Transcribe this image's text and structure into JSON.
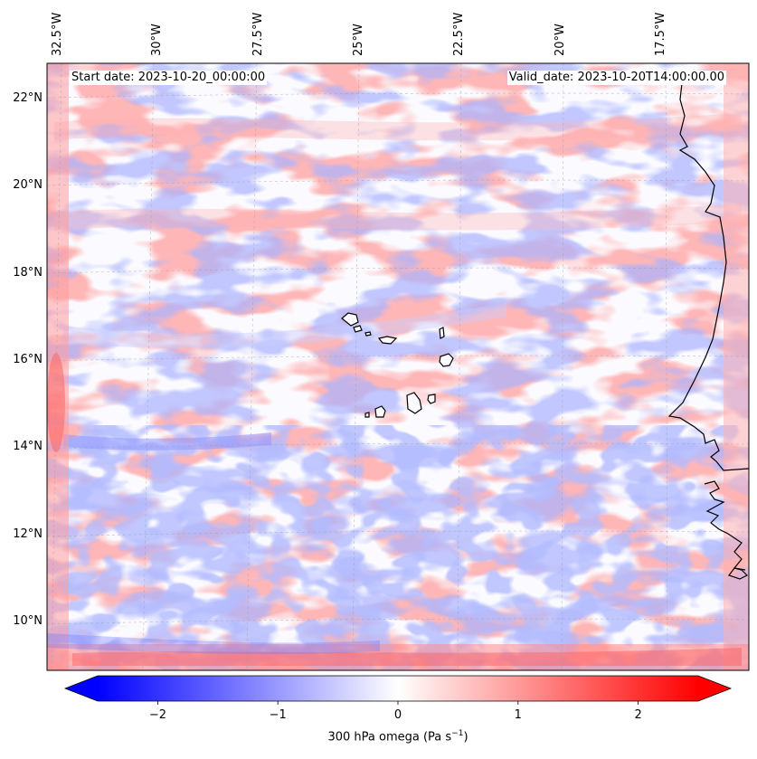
{
  "header": {
    "start_date": "Start date: 2023-10-20_00:00:00",
    "valid_date": "Valid_date: 2023-10-20T14:00:00.00"
  },
  "map": {
    "projection": "lambert-conformal",
    "lon_range_deg": [
      -32.5,
      -15.0
    ],
    "lat_range_deg": [
      9.0,
      22.8
    ],
    "field": "300 hPa omega",
    "lon_labels": [
      "32.5°W",
      "30°W",
      "27.5°W",
      "25°W",
      "22.5°W",
      "20°W",
      "17.5°W"
    ],
    "lat_labels": [
      "22°N",
      "20°N",
      "18°N",
      "16°N",
      "14°N",
      "12°N",
      "10°N"
    ],
    "features": [
      "coastline-west-africa",
      "cape-verde-islands"
    ]
  },
  "colorbar": {
    "cmap": "bwr",
    "vmin": -2.5,
    "vmax": 2.5,
    "extend": "both",
    "ticks": [
      "−2",
      "−1",
      "0",
      "1",
      "2"
    ],
    "tick_values": [
      -2,
      -1,
      0,
      1,
      2
    ],
    "label_text": "300 hPa omega (Pa s",
    "label_exp": "−1",
    "label_end": ")"
  },
  "colors": {
    "negative": "#0000ff",
    "neutral": "#ffffff",
    "positive": "#ff0000"
  }
}
